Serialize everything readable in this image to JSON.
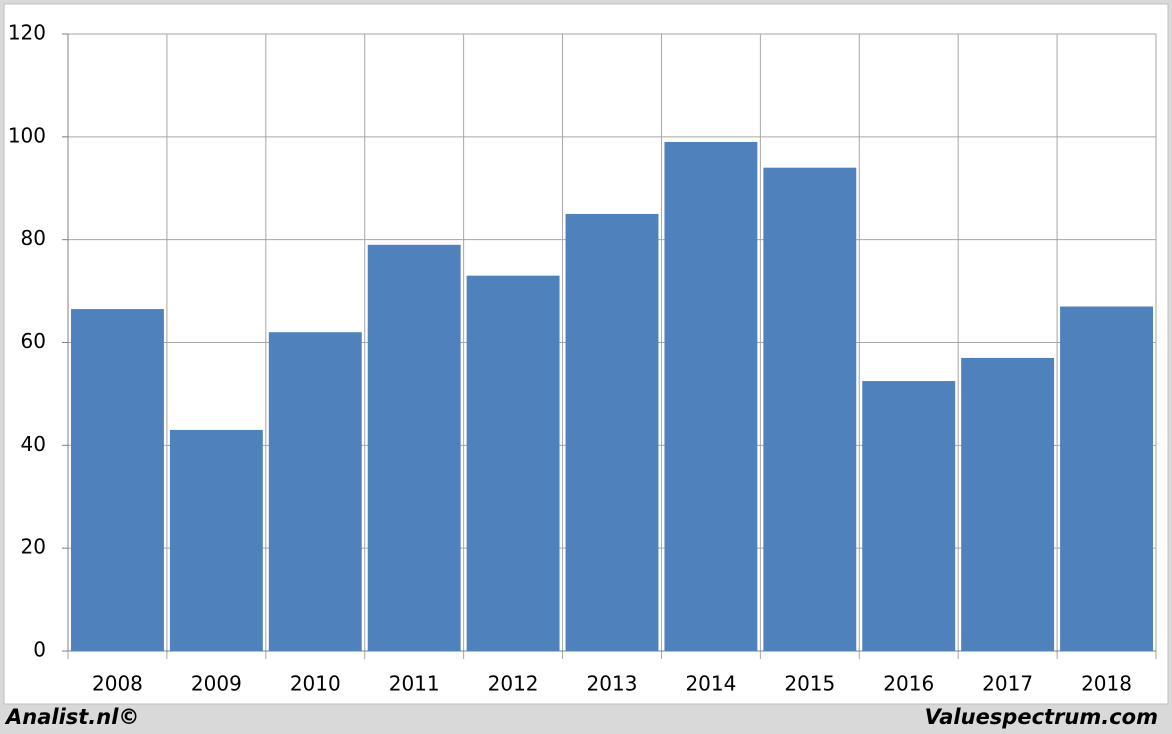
{
  "chart_data": {
    "type": "bar",
    "categories": [
      "2008",
      "2009",
      "2010",
      "2011",
      "2012",
      "2013",
      "2014",
      "2015",
      "2016",
      "2017",
      "2018"
    ],
    "values": [
      66.5,
      43,
      62,
      79,
      73,
      85,
      99,
      94,
      52.5,
      57,
      67
    ],
    "color": "#4f81bd",
    "ylim": [
      0,
      120
    ],
    "yticks": [
      0,
      20,
      40,
      60,
      80,
      100,
      120
    ],
    "grid": true,
    "footer_left": "Analist.nl©",
    "footer_right": "Valuespectrum.com"
  }
}
